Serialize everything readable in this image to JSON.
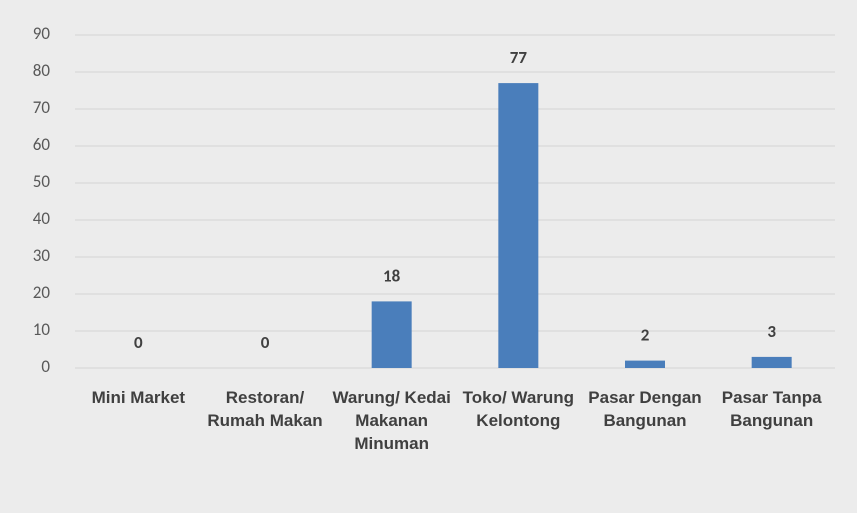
{
  "chart_data": {
    "type": "bar",
    "categories": [
      "Mini Market",
      "Restoran/ Rumah Makan",
      "Warung/ Kedai Makanan Minuman",
      "Toko/ Warung Kelontong",
      "Pasar Dengan Bangunan",
      "Pasar Tanpa Bangunan"
    ],
    "values": [
      0,
      0,
      18,
      77,
      2,
      3
    ],
    "color": "#4a7ebb",
    "ylim": [
      0,
      90
    ],
    "yticks": [
      0,
      10,
      20,
      30,
      40,
      50,
      60,
      70,
      80,
      90
    ],
    "grid": true
  }
}
